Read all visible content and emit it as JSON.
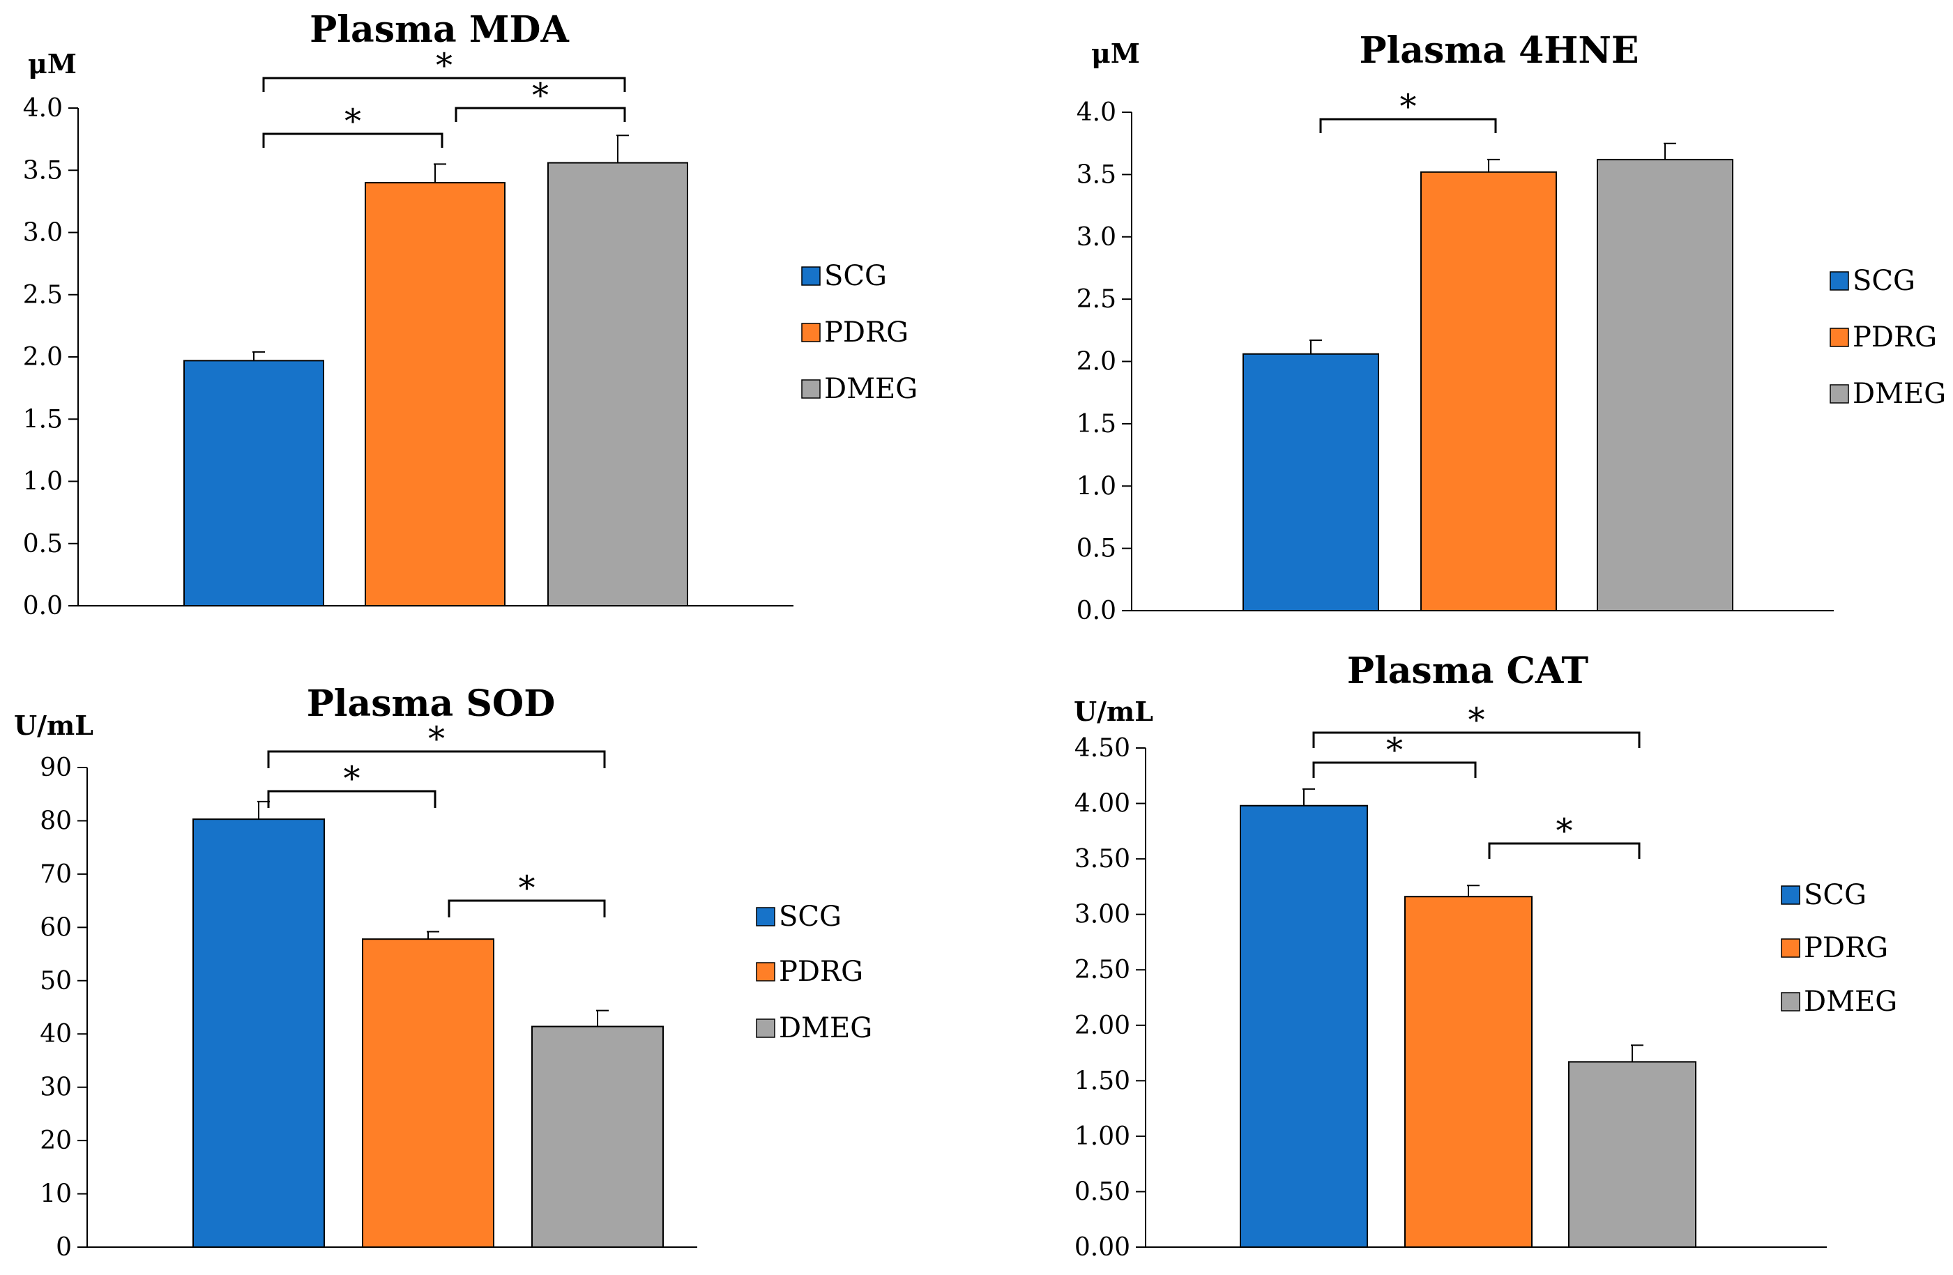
{
  "chart_data": [
    {
      "id": "mda",
      "type": "bar",
      "title": "Plasma MDA",
      "ylabel": "μM",
      "categories": [
        "SCG",
        "PDRG",
        "DMEG"
      ],
      "values": [
        1.97,
        3.4,
        3.56
      ],
      "errors": [
        0.07,
        0.15,
        0.22
      ],
      "ylim": [
        0,
        4.0
      ],
      "yticks": [
        "0.0",
        "0.5",
        "1.0",
        "1.5",
        "2.0",
        "2.5",
        "3.0",
        "3.5",
        "4.0"
      ],
      "legend": [
        "SCG",
        "PDRG",
        "DMEG"
      ],
      "legend_position": "right",
      "significance": [
        {
          "from": 0,
          "to": 1,
          "level": 0,
          "label": "*"
        },
        {
          "from": 1,
          "to": 2,
          "level": 1,
          "label": "*"
        },
        {
          "from": 0,
          "to": 2,
          "level": 2,
          "label": "*"
        }
      ]
    },
    {
      "id": "hne",
      "type": "bar",
      "title": "Plasma 4HNE",
      "ylabel": "μM",
      "categories": [
        "SCG",
        "PDRG",
        "DMEG"
      ],
      "values": [
        2.06,
        3.52,
        3.62
      ],
      "errors": [
        0.11,
        0.1,
        0.13
      ],
      "ylim": [
        0,
        4.0
      ],
      "yticks": [
        "0.0",
        "0.5",
        "1.0",
        "1.5",
        "2.0",
        "2.5",
        "3.0",
        "3.5",
        "4.0"
      ],
      "legend": [
        "SCG",
        "PDRG",
        "DMEG"
      ],
      "legend_position": "right",
      "significance": [
        {
          "from": 0,
          "to": 1,
          "level": 0,
          "label": "*"
        }
      ]
    },
    {
      "id": "sod",
      "type": "bar",
      "title": "Plasma SOD",
      "ylabel": "U/mL",
      "categories": [
        "SCG",
        "PDRG",
        "DMEG"
      ],
      "values": [
        80.3,
        57.8,
        41.4
      ],
      "errors": [
        3.3,
        1.4,
        3.0
      ],
      "ylim": [
        0,
        90
      ],
      "yticks": [
        "0",
        "10",
        "20",
        "30",
        "40",
        "50",
        "60",
        "70",
        "80",
        "90"
      ],
      "legend": [
        "SCG",
        "PDRG",
        "DMEG"
      ],
      "legend_position": "right",
      "significance": [
        {
          "from": 0,
          "to": 1,
          "level": 0,
          "label": "*"
        },
        {
          "from": 0,
          "to": 2,
          "level": 1,
          "label": "*"
        },
        {
          "from": 1,
          "to": 2,
          "level": -1,
          "label": "*"
        }
      ]
    },
    {
      "id": "cat",
      "type": "bar",
      "title": "Plasma CAT",
      "ylabel": "U/mL",
      "categories": [
        "SCG",
        "PDRG",
        "DMEG"
      ],
      "values": [
        3.98,
        3.16,
        1.67
      ],
      "errors": [
        0.15,
        0.1,
        0.15
      ],
      "ylim": [
        0,
        4.5
      ],
      "yticks": [
        "0.00",
        "0.50",
        "1.00",
        "1.50",
        "2.00",
        "2.50",
        "3.00",
        "3.50",
        "4.00",
        "4.50"
      ],
      "legend": [
        "SCG",
        "PDRG",
        "DMEG"
      ],
      "legend_position": "right",
      "significance": [
        {
          "from": 0,
          "to": 1,
          "level": 0,
          "label": "*"
        },
        {
          "from": 0,
          "to": 2,
          "level": 1,
          "label": "*"
        },
        {
          "from": 1,
          "to": 2,
          "level": -1,
          "label": "*"
        }
      ]
    }
  ],
  "colors": {
    "SCG": "#1773C9",
    "PDRG": "#FF7F27",
    "DMEG": "#A5A5A5",
    "axis": "#000000"
  }
}
